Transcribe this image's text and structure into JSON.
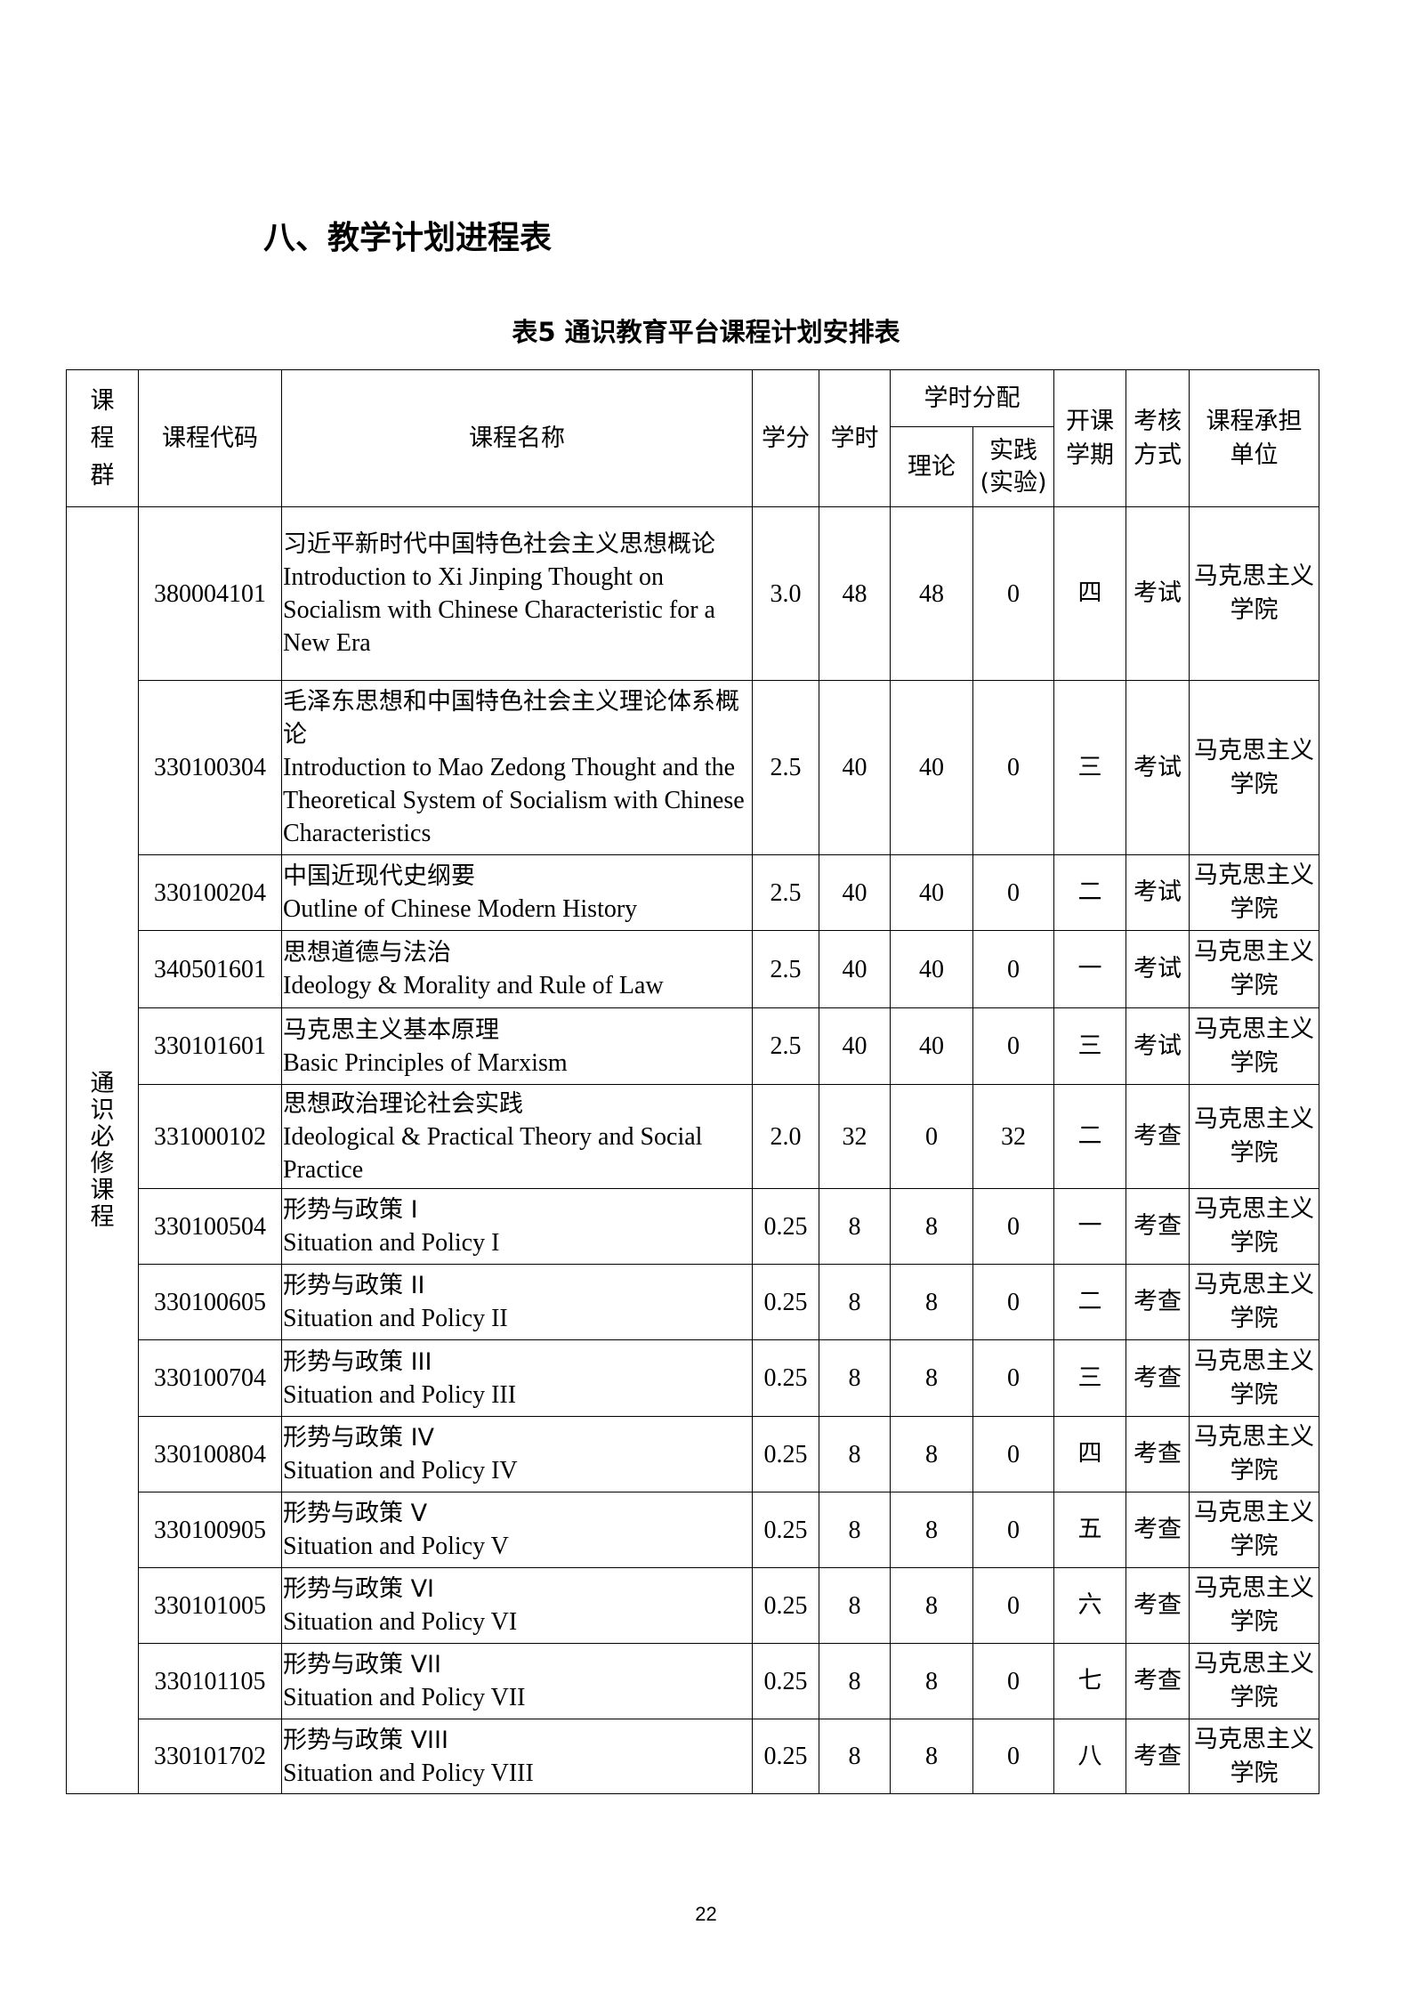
{
  "section_title": "八、教学计划进程表",
  "table_caption": "表5 通识教育平台课程计划安排表",
  "headers": {
    "group": "课程群",
    "code": "课程代码",
    "name": "课程名称",
    "credits": "学分",
    "hours": "学时",
    "hours_split": "学时分配",
    "theory": "理论",
    "practice": "实践(实验)",
    "semester": "开课学期",
    "exam": "考核方式",
    "dept": "课程承担单位"
  },
  "group_name": "通识必修课程",
  "rows": [
    {
      "code": "380004101",
      "name_zh": "习近平新时代中国特色社会主义思想概论",
      "name_en": "Introduction to Xi Jinping Thought on Socialism with Chinese Characteristic for a New Era",
      "credits": "3.0",
      "hours": "48",
      "theory": "48",
      "practice": "0",
      "semester": "四",
      "exam": "考试",
      "dept": "马克思主义学院"
    },
    {
      "code": "330100304",
      "name_zh": "毛泽东思想和中国特色社会主义理论体系概论",
      "name_en": "Introduction to Mao Zedong Thought and the Theoretical System of Socialism with Chinese Characteristics",
      "credits": "2.5",
      "hours": "40",
      "theory": "40",
      "practice": "0",
      "semester": "三",
      "exam": "考试",
      "dept": "马克思主义学院"
    },
    {
      "code": "330100204",
      "name_zh": "中国近现代史纲要",
      "name_en": "Outline of Chinese Modern History",
      "credits": "2.5",
      "hours": "40",
      "theory": "40",
      "practice": "0",
      "semester": "二",
      "exam": "考试",
      "dept": "马克思主义学院"
    },
    {
      "code": "340501601",
      "name_zh": "思想道德与法治",
      "name_en": "Ideology & Morality and Rule of Law",
      "credits": "2.5",
      "hours": "40",
      "theory": "40",
      "practice": "0",
      "semester": "一",
      "exam": "考试",
      "dept": "马克思主义学院"
    },
    {
      "code": "330101601",
      "name_zh": "马克思主义基本原理",
      "name_en": "Basic Principles of Marxism",
      "credits": "2.5",
      "hours": "40",
      "theory": "40",
      "practice": "0",
      "semester": "三",
      "exam": "考试",
      "dept": "马克思主义学院"
    },
    {
      "code": "331000102",
      "name_zh": "思想政治理论社会实践",
      "name_en": "Ideological & Practical Theory and Social Practice",
      "credits": "2.0",
      "hours": "32",
      "theory": "0",
      "practice": "32",
      "semester": "二",
      "exam": "考查",
      "dept": "马克思主义学院"
    },
    {
      "code": "330100504",
      "name_zh": "形势与政策 I",
      "name_en": "Situation and Policy I",
      "credits": "0.25",
      "hours": "8",
      "theory": "8",
      "practice": "0",
      "semester": "一",
      "exam": "考查",
      "dept": "马克思主义学院"
    },
    {
      "code": "330100605",
      "name_zh": "形势与政策 II",
      "name_en": "Situation and Policy II",
      "credits": "0.25",
      "hours": "8",
      "theory": "8",
      "practice": "0",
      "semester": "二",
      "exam": "考查",
      "dept": "马克思主义学院"
    },
    {
      "code": "330100704",
      "name_zh": "形势与政策 III",
      "name_en": "Situation and Policy III",
      "credits": "0.25",
      "hours": "8",
      "theory": "8",
      "practice": "0",
      "semester": "三",
      "exam": "考查",
      "dept": "马克思主义学院"
    },
    {
      "code": "330100804",
      "name_zh": "形势与政策 IV",
      "name_en": "Situation and Policy IV",
      "credits": "0.25",
      "hours": "8",
      "theory": "8",
      "practice": "0",
      "semester": "四",
      "exam": "考查",
      "dept": "马克思主义学院"
    },
    {
      "code": "330100905",
      "name_zh": "形势与政策 V",
      "name_en": "Situation and Policy V",
      "credits": "0.25",
      "hours": "8",
      "theory": "8",
      "practice": "0",
      "semester": "五",
      "exam": "考查",
      "dept": "马克思主义学院"
    },
    {
      "code": "330101005",
      "name_zh": "形势与政策 VI",
      "name_en": "Situation and Policy VI",
      "credits": "0.25",
      "hours": "8",
      "theory": "8",
      "practice": "0",
      "semester": "六",
      "exam": "考查",
      "dept": "马克思主义学院"
    },
    {
      "code": "330101105",
      "name_zh": "形势与政策 VII",
      "name_en": "Situation and Policy VII",
      "credits": "0.25",
      "hours": "8",
      "theory": "8",
      "practice": "0",
      "semester": "七",
      "exam": "考查",
      "dept": "马克思主义学院"
    },
    {
      "code": "330101702",
      "name_zh": "形势与政策 VIII",
      "name_en": "Situation and Policy VIII",
      "credits": "0.25",
      "hours": "8",
      "theory": "8",
      "practice": "0",
      "semester": "八",
      "exam": "考查",
      "dept": "马克思主义学院"
    }
  ],
  "page_number": "22"
}
